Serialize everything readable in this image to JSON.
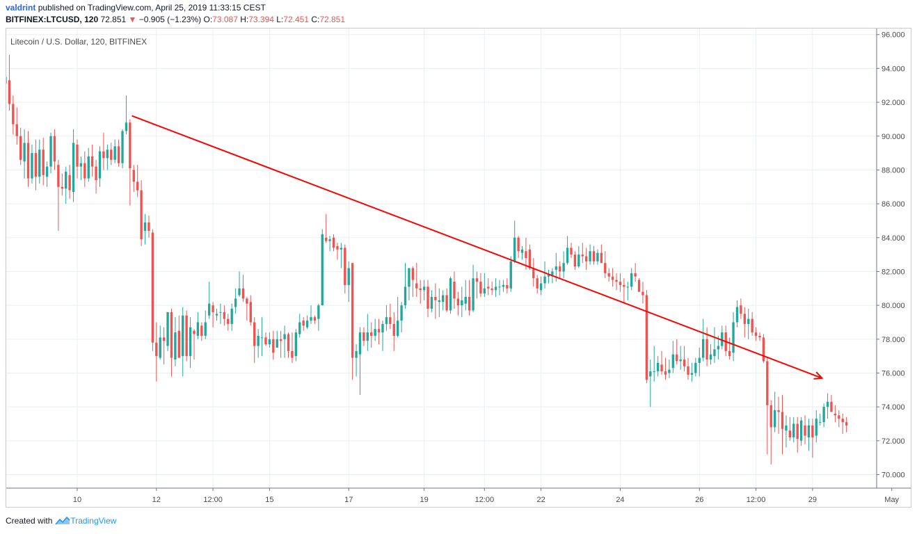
{
  "header": {
    "author": "valdrint",
    "published_text": "published on TradingView.com, April 25, 2019 11:33:15 CEST"
  },
  "ticker": {
    "symbol": "BITFINEX:LTCUSD, 120",
    "last": "72.851",
    "change": "−0.905 (−1.23%)",
    "o_label": "O:",
    "o_value": "73.087",
    "h_label": "H:",
    "h_value": "73.394",
    "l_label": "L:",
    "l_value": "72.451",
    "c_label": "C:",
    "c_value": "72.851"
  },
  "footer": {
    "created_with": "Created with",
    "brand": "TradingView"
  },
  "colors": {
    "up": "#26a69a",
    "down": "#ef5350",
    "trendline": "#ff0000",
    "grid": "#e9eff3"
  },
  "chart_data": {
    "type": "candlestick",
    "title": "Litecoin / U.S. Dollar, 120, BITFINEX",
    "y_axis": {
      "min": 69.2,
      "max": 96.4,
      "ticks": [
        {
          "value": 96,
          "label": "96.000"
        },
        {
          "value": 94,
          "label": "94.000"
        },
        {
          "value": 92,
          "label": "92.000"
        },
        {
          "value": 90,
          "label": "90.000"
        },
        {
          "value": 88,
          "label": "88.000"
        },
        {
          "value": 86,
          "label": "86.000"
        },
        {
          "value": 84,
          "label": "84.000"
        },
        {
          "value": 82,
          "label": "82.000"
        },
        {
          "value": 80,
          "label": "80.000"
        },
        {
          "value": 78,
          "label": "78.000"
        },
        {
          "value": 76,
          "label": "76.000"
        },
        {
          "value": 74,
          "label": "74.000"
        },
        {
          "value": 72,
          "label": "72.000"
        },
        {
          "value": 70,
          "label": "70.000"
        }
      ]
    },
    "x_axis": {
      "min": 0,
      "max": 231,
      "ticks": [
        {
          "index": 19,
          "label": "10"
        },
        {
          "index": 40,
          "label": "12"
        },
        {
          "index": 55,
          "label": "12:00"
        },
        {
          "index": 70,
          "label": "15"
        },
        {
          "index": 91,
          "label": "17"
        },
        {
          "index": 111,
          "label": "19"
        },
        {
          "index": 127,
          "label": "12:00"
        },
        {
          "index": 142,
          "label": "22"
        },
        {
          "index": 163,
          "label": "24"
        },
        {
          "index": 184,
          "label": "26"
        },
        {
          "index": 199,
          "label": "12:00"
        },
        {
          "index": 214,
          "label": "29"
        },
        {
          "index": 235,
          "label": "May"
        }
      ]
    },
    "candles_ohlc": [
      [
        93.5,
        94.7,
        92.3,
        93.1
      ],
      [
        93.3,
        94.8,
        91.5,
        91.9
      ],
      [
        91.9,
        92.4,
        90.1,
        90.7
      ],
      [
        90.7,
        91.7,
        89.5,
        90.0
      ],
      [
        90.0,
        90.5,
        88.3,
        88.6
      ],
      [
        88.5,
        90.4,
        87.5,
        89.6
      ],
      [
        89.6,
        90.3,
        87.0,
        87.5
      ],
      [
        87.5,
        89.5,
        87.2,
        89.0
      ],
      [
        89.0,
        89.8,
        86.8,
        87.6
      ],
      [
        87.6,
        89.8,
        87.2,
        89.2
      ],
      [
        89.2,
        89.9,
        87.1,
        87.7
      ],
      [
        87.6,
        88.5,
        87.0,
        88.2
      ],
      [
        88.2,
        90.2,
        87.8,
        90.0
      ],
      [
        90.0,
        90.4,
        88.0,
        88.5
      ],
      [
        88.3,
        88.6,
        84.4,
        87.0
      ],
      [
        87.0,
        87.8,
        86.5,
        86.9
      ],
      [
        86.9,
        88.2,
        86.0,
        87.9
      ],
      [
        87.7,
        88.3,
        86.3,
        86.8
      ],
      [
        86.7,
        90.4,
        86.1,
        89.6
      ],
      [
        89.5,
        89.8,
        87.5,
        88.2
      ],
      [
        88.2,
        88.8,
        87.4,
        88.4
      ],
      [
        88.4,
        89.1,
        87.0,
        87.5
      ],
      [
        87.5,
        89.3,
        87.3,
        88.8
      ],
      [
        88.8,
        89.5,
        87.6,
        88.2
      ],
      [
        88.2,
        88.6,
        86.6,
        87.4
      ],
      [
        87.5,
        89.4,
        87.0,
        89.1
      ],
      [
        89.1,
        90.2,
        88.0,
        88.7
      ],
      [
        88.7,
        89.5,
        88.0,
        89.2
      ],
      [
        89.2,
        89.6,
        88.3,
        88.6
      ],
      [
        88.6,
        89.8,
        88.4,
        89.4
      ],
      [
        89.4,
        89.8,
        88.2,
        88.4
      ],
      [
        88.4,
        90.4,
        88.1,
        90.3
      ],
      [
        90.3,
        92.4,
        90.1,
        90.8
      ],
      [
        90.8,
        91.0,
        85.9,
        88.1
      ],
      [
        88.0,
        88.3,
        86.7,
        87.3
      ],
      [
        87.3,
        88.3,
        86.4,
        86.8
      ],
      [
        86.8,
        87.4,
        83.5,
        83.9
      ],
      [
        84.4,
        85.4,
        83.6,
        84.9
      ],
      [
        84.9,
        85.3,
        84.0,
        84.4
      ],
      [
        84.3,
        84.5,
        77.3,
        77.8
      ],
      [
        77.8,
        79.0,
        75.5,
        77.0
      ],
      [
        76.9,
        78.8,
        76.8,
        78.1
      ],
      [
        78.1,
        78.7,
        76.5,
        77.9
      ],
      [
        77.6,
        79.6,
        77.3,
        79.6
      ],
      [
        79.6,
        79.8,
        75.8,
        76.9
      ],
      [
        76.8,
        79.3,
        76.4,
        78.4
      ],
      [
        78.5,
        79.4,
        76.9,
        76.9
      ],
      [
        77.0,
        79.9,
        75.8,
        79.4
      ],
      [
        79.4,
        79.7,
        76.7,
        77.0
      ],
      [
        77.0,
        79.3,
        76.3,
        78.7
      ],
      [
        78.5,
        78.6,
        76.8,
        78.3
      ],
      [
        78.2,
        79.6,
        78.0,
        79.0
      ],
      [
        78.8,
        79.0,
        77.9,
        78.2
      ],
      [
        78.2,
        79.7,
        78.0,
        79.0
      ],
      [
        79.4,
        81.4,
        79.2,
        80.1
      ],
      [
        80.0,
        80.2,
        78.7,
        79.6
      ],
      [
        79.4,
        79.8,
        79.1,
        79.5
      ],
      [
        79.6,
        80.1,
        78.9,
        79.6
      ],
      [
        79.6,
        80.0,
        78.8,
        79.2
      ],
      [
        79.2,
        79.5,
        78.5,
        78.9
      ],
      [
        78.9,
        80.1,
        78.5,
        79.8
      ],
      [
        79.9,
        81.0,
        79.5,
        80.4
      ],
      [
        80.6,
        82.0,
        80.5,
        81.0
      ],
      [
        81.0,
        81.8,
        80.2,
        80.4
      ],
      [
        80.4,
        80.5,
        79.1,
        80.1
      ],
      [
        80.2,
        80.6,
        78.8,
        79.0
      ],
      [
        79.0,
        79.3,
        76.6,
        77.6
      ],
      [
        77.6,
        78.6,
        76.9,
        78.2
      ],
      [
        78.1,
        79.3,
        77.0,
        78.1
      ],
      [
        78.1,
        78.4,
        77.6,
        77.7
      ],
      [
        77.7,
        78.4,
        77.5,
        78.0
      ],
      [
        78.0,
        78.5,
        76.8,
        77.2
      ],
      [
        77.5,
        78.5,
        77.5,
        78.0
      ],
      [
        78.0,
        78.5,
        76.9,
        77.9
      ],
      [
        78.0,
        78.8,
        76.9,
        78.3
      ],
      [
        78.3,
        78.4,
        76.9,
        77.3
      ],
      [
        77.3,
        78.4,
        76.6,
        76.9
      ],
      [
        77.0,
        78.6,
        76.7,
        78.4
      ],
      [
        78.3,
        79.5,
        78.1,
        79.0
      ],
      [
        79.1,
        79.3,
        78.5,
        78.8
      ],
      [
        78.7,
        79.4,
        78.6,
        79.1
      ],
      [
        79.1,
        80.0,
        78.9,
        79.3
      ],
      [
        79.3,
        79.4,
        78.9,
        79.1
      ],
      [
        79.2,
        80.1,
        78.5,
        80.0
      ],
      [
        80.0,
        84.5,
        80.0,
        84.2
      ],
      [
        84.0,
        85.4,
        83.7,
        83.8
      ],
      [
        83.8,
        84.1,
        83.2,
        83.9
      ],
      [
        84.0,
        84.2,
        83.2,
        83.4
      ],
      [
        83.5,
        83.7,
        82.7,
        83.3
      ],
      [
        83.3,
        83.7,
        82.2,
        83.4
      ],
      [
        83.4,
        83.6,
        80.7,
        81.2
      ],
      [
        81.2,
        82.6,
        80.2,
        82.2
      ],
      [
        82.5,
        82.5,
        75.6,
        76.9
      ],
      [
        76.9,
        77.7,
        75.8,
        77.3
      ],
      [
        77.1,
        78.7,
        74.7,
        78.4
      ],
      [
        78.4,
        78.7,
        77.6,
        77.9
      ],
      [
        77.9,
        79.5,
        77.3,
        78.4
      ],
      [
        78.4,
        79.0,
        77.5,
        78.2
      ],
      [
        78.2,
        79.2,
        77.9,
        78.6
      ],
      [
        78.6,
        79.2,
        77.7,
        78.4
      ],
      [
        78.4,
        79.1,
        77.3,
        78.9
      ],
      [
        78.9,
        80.0,
        78.5,
        79.3
      ],
      [
        79.3,
        80.1,
        78.6,
        78.9
      ],
      [
        78.9,
        79.6,
        77.3,
        78.2
      ],
      [
        78.2,
        80.5,
        78.1,
        79.1
      ],
      [
        79.1,
        80.2,
        78.4,
        80.0
      ],
      [
        80.0,
        82.5,
        79.8,
        81.1
      ],
      [
        81.1,
        82.2,
        80.3,
        82.2
      ],
      [
        82.2,
        82.3,
        80.5,
        81.5
      ],
      [
        81.3,
        82.5,
        80.5,
        81.0
      ],
      [
        81.0,
        81.5,
        80.1,
        80.9
      ],
      [
        80.9,
        81.5,
        80.3,
        81.1
      ],
      [
        81.1,
        81.5,
        79.3,
        79.8
      ],
      [
        79.8,
        80.9,
        79.6,
        80.5
      ],
      [
        80.5,
        81.3,
        79.2,
        80.3
      ],
      [
        80.2,
        81.0,
        79.3,
        80.3
      ],
      [
        80.2,
        80.9,
        79.7,
        80.6
      ],
      [
        80.6,
        81.0,
        79.6,
        79.7
      ],
      [
        79.7,
        81.7,
        79.5,
        81.6
      ],
      [
        81.4,
        82.0,
        79.8,
        80.4
      ],
      [
        80.4,
        80.8,
        79.4,
        80.0
      ],
      [
        80.0,
        81.1,
        79.3,
        80.3
      ],
      [
        80.1,
        81.5,
        79.7,
        80.5
      ],
      [
        80.5,
        81.5,
        79.4,
        79.7
      ],
      [
        79.7,
        82.4,
        79.6,
        81.6
      ],
      [
        81.6,
        82.0,
        80.4,
        81.4
      ],
      [
        81.4,
        81.9,
        80.5,
        80.7
      ],
      [
        80.7,
        81.9,
        80.5,
        81.0
      ],
      [
        81.1,
        81.6,
        80.6,
        81.0
      ],
      [
        81.0,
        81.4,
        80.6,
        80.9
      ],
      [
        80.9,
        81.6,
        80.5,
        81.1
      ],
      [
        81.1,
        81.5,
        80.6,
        81.1
      ],
      [
        81.1,
        81.5,
        80.8,
        81.2
      ],
      [
        81.2,
        81.6,
        80.7,
        81.0
      ],
      [
        81.0,
        82.9,
        80.8,
        82.6
      ],
      [
        82.6,
        85.0,
        82.5,
        84.0
      ],
      [
        84.0,
        84.1,
        82.8,
        83.2
      ],
      [
        83.1,
        83.5,
        82.7,
        83.3
      ],
      [
        83.2,
        84.0,
        82.1,
        82.8
      ],
      [
        83.3,
        83.6,
        82.1,
        82.2
      ],
      [
        82.2,
        82.8,
        81.1,
        81.6
      ],
      [
        81.6,
        81.8,
        80.7,
        81.0
      ],
      [
        80.9,
        81.7,
        80.6,
        81.3
      ],
      [
        81.3,
        82.6,
        81.0,
        81.7
      ],
      [
        81.7,
        82.1,
        81.3,
        81.8
      ],
      [
        81.8,
        82.2,
        81.3,
        82.0
      ],
      [
        82.1,
        83.1,
        81.4,
        82.3
      ],
      [
        82.3,
        82.6,
        81.6,
        82.0
      ],
      [
        82.0,
        83.2,
        81.6,
        82.5
      ],
      [
        82.5,
        84.1,
        82.4,
        83.4
      ],
      [
        83.4,
        83.7,
        82.8,
        83.0
      ],
      [
        83.0,
        83.2,
        82.1,
        82.3
      ],
      [
        82.3,
        83.5,
        82.2,
        83.0
      ],
      [
        83.0,
        83.7,
        82.5,
        82.9
      ],
      [
        82.9,
        83.4,
        82.1,
        82.6
      ],
      [
        82.6,
        83.6,
        82.4,
        83.2
      ],
      [
        83.2,
        83.5,
        82.4,
        82.6
      ],
      [
        82.6,
        83.3,
        82.4,
        83.1
      ],
      [
        83.1,
        83.6,
        82.5,
        82.5
      ],
      [
        82.5,
        83.2,
        81.6,
        81.9
      ],
      [
        81.9,
        82.2,
        81.4,
        81.7
      ],
      [
        81.7,
        82.2,
        81.1,
        81.5
      ],
      [
        81.5,
        81.9,
        80.9,
        81.4
      ],
      [
        81.4,
        81.9,
        80.8,
        81.2
      ],
      [
        81.2,
        81.6,
        80.1,
        81.1
      ],
      [
        81.1,
        81.4,
        80.3,
        81.1
      ],
      [
        81.1,
        82.2,
        80.9,
        81.9
      ],
      [
        81.9,
        82.5,
        81.4,
        81.7
      ],
      [
        81.5,
        81.6,
        80.8,
        80.8
      ],
      [
        80.8,
        81.4,
        80.1,
        80.6
      ],
      [
        80.6,
        80.9,
        75.4,
        75.6
      ],
      [
        75.8,
        76.8,
        74.0,
        76.1
      ],
      [
        76.1,
        77.6,
        75.5,
        76.1
      ],
      [
        76.1,
        77.0,
        75.8,
        76.6
      ],
      [
        76.5,
        77.3,
        75.9,
        76.1
      ],
      [
        76.1,
        76.9,
        75.6,
        75.9
      ],
      [
        76.0,
        76.8,
        75.7,
        76.2
      ],
      [
        76.3,
        77.9,
        76.0,
        77.1
      ],
      [
        77.1,
        78.0,
        76.5,
        76.7
      ],
      [
        76.7,
        77.6,
        76.2,
        76.8
      ],
      [
        76.8,
        77.6,
        76.1,
        76.4
      ],
      [
        76.4,
        76.9,
        75.6,
        75.9
      ],
      [
        75.9,
        76.6,
        75.5,
        76.0
      ],
      [
        76.0,
        76.9,
        75.8,
        76.6
      ],
      [
        76.6,
        77.5,
        75.8,
        76.9
      ],
      [
        76.9,
        79.2,
        76.7,
        78.0
      ],
      [
        78.0,
        78.7,
        76.4,
        76.8
      ],
      [
        76.8,
        77.7,
        76.5,
        77.1
      ],
      [
        77.0,
        78.7,
        76.6,
        77.4
      ],
      [
        77.4,
        78.2,
        76.8,
        77.6
      ],
      [
        77.6,
        78.8,
        77.4,
        78.4
      ],
      [
        78.4,
        78.8,
        77.0,
        77.3
      ],
      [
        77.3,
        78.1,
        76.8,
        77.0
      ],
      [
        77.2,
        79.6,
        76.7,
        79.0
      ],
      [
        79.0,
        80.3,
        78.7,
        79.9
      ],
      [
        80.0,
        80.4,
        79.2,
        79.5
      ],
      [
        79.5,
        79.9,
        78.1,
        78.9
      ],
      [
        78.9,
        79.8,
        78.0,
        79.2
      ],
      [
        79.2,
        79.6,
        78.2,
        78.4
      ],
      [
        78.4,
        78.7,
        77.9,
        78.2
      ],
      [
        78.2,
        78.4,
        77.9,
        78.1
      ],
      [
        78.1,
        78.3,
        76.6,
        76.7
      ],
      [
        76.7,
        76.9,
        71.2,
        74.1
      ],
      [
        74.1,
        74.4,
        70.6,
        72.8
      ],
      [
        72.8,
        74.9,
        72.5,
        73.8
      ],
      [
        73.8,
        74.6,
        72.4,
        73.7
      ],
      [
        73.7,
        74.7,
        71.2,
        72.7
      ],
      [
        72.6,
        73.5,
        71.6,
        72.9
      ],
      [
        72.6,
        73.4,
        72.0,
        72.2
      ],
      [
        72.2,
        73.4,
        71.9,
        73.0
      ],
      [
        73.0,
        73.4,
        71.3,
        72.1
      ],
      [
        72.0,
        73.4,
        71.7,
        73.2
      ],
      [
        72.9,
        73.5,
        71.8,
        72.3
      ],
      [
        72.2,
        73.3,
        71.4,
        72.9
      ],
      [
        72.9,
        73.3,
        71.0,
        72.2
      ],
      [
        72.3,
        73.8,
        71.9,
        73.3
      ],
      [
        73.1,
        73.6,
        72.9,
        73.1
      ],
      [
        73.1,
        74.2,
        72.8,
        74.0
      ],
      [
        74.0,
        74.8,
        73.3,
        74.3
      ],
      [
        74.3,
        74.7,
        73.7,
        73.7
      ],
      [
        73.6,
        74.1,
        73.1,
        73.5
      ],
      [
        73.5,
        73.8,
        72.8,
        73.3
      ],
      [
        73.3,
        73.6,
        72.4,
        73.1
      ],
      [
        73.1,
        73.4,
        72.5,
        72.9
      ]
    ],
    "trendline": {
      "from": {
        "index": 33.5,
        "price": 91.2
      },
      "to": {
        "index": 216.5,
        "price": 75.7
      }
    }
  }
}
